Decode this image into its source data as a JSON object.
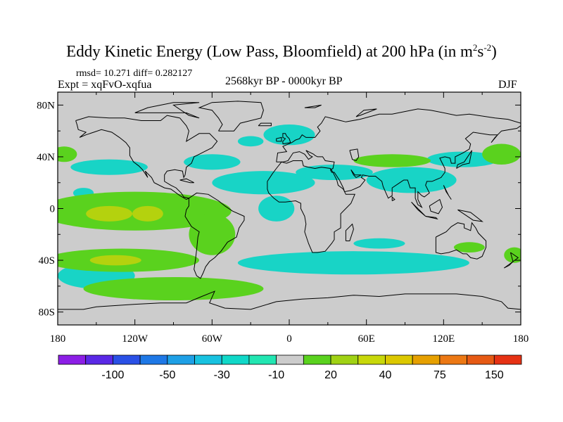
{
  "title_main": "Eddy Kinetic Energy (Low Pass, Bloomfield) at 200 hPa (in m",
  "title_sup1": "2",
  "title_mid": "s",
  "title_sup2": "-2",
  "title_end": ")",
  "stats": "rmsd= 10.271 diff= 0.282127",
  "expt": "Expt = xqFvO-xqfua",
  "period": "2568kyr BP - 0000kyr BP",
  "season": "DJF",
  "lat_ticks": [
    {
      "value": 80,
      "label": "80N"
    },
    {
      "value": 40,
      "label": "40N"
    },
    {
      "value": 0,
      "label": "0"
    },
    {
      "value": -40,
      "label": "40S"
    },
    {
      "value": -80,
      "label": "80S"
    }
  ],
  "lon_ticks": [
    {
      "value": -180,
      "label": "180"
    },
    {
      "value": -120,
      "label": "120W"
    },
    {
      "value": -60,
      "label": "60W"
    },
    {
      "value": 0,
      "label": "0"
    },
    {
      "value": 60,
      "label": "60E"
    },
    {
      "value": 120,
      "label": "120E"
    },
    {
      "value": 180,
      "label": "180"
    }
  ],
  "colorbar": {
    "colors": [
      "#8c1ee6",
      "#5a28e6",
      "#2a50e6",
      "#1e78e6",
      "#1ea0e6",
      "#18c2e0",
      "#10d8c8",
      "#22e6b2",
      "#cccccc",
      "#5ad21e",
      "#a0d214",
      "#c8d80a",
      "#dcc800",
      "#e6a000",
      "#ec7814",
      "#e65a14",
      "#e63214"
    ],
    "labels": [
      {
        "boundary": 2,
        "text": "-100"
      },
      {
        "boundary": 4,
        "text": "-50"
      },
      {
        "boundary": 6,
        "text": "-30"
      },
      {
        "boundary": 8,
        "text": "-10"
      },
      {
        "boundary": 10,
        "text": "20"
      },
      {
        "boundary": 12,
        "text": "40"
      },
      {
        "boundary": 14,
        "text": "75"
      },
      {
        "boundary": 16,
        "text": "150"
      }
    ]
  },
  "map": {
    "background": "#cccccc",
    "anomaly_regions": [
      {
        "color": "#18d4c6",
        "lon": -140,
        "lat": 32,
        "rlon": 30,
        "rlat": 6
      },
      {
        "color": "#18d4c6",
        "lon": -60,
        "lat": 36,
        "rlon": 22,
        "rlat": 6
      },
      {
        "color": "#18d4c6",
        "lon": -20,
        "lat": 20,
        "rlon": 40,
        "rlat": 9
      },
      {
        "color": "#18d4c6",
        "lon": -10,
        "lat": 0,
        "rlon": 14,
        "rlat": 10
      },
      {
        "color": "#18d4c6",
        "lon": 0,
        "lat": 57,
        "rlon": 20,
        "rlat": 8
      },
      {
        "color": "#18d4c6",
        "lon": 35,
        "lat": 28,
        "rlon": 30,
        "rlat": 6
      },
      {
        "color": "#18d4c6",
        "lon": 95,
        "lat": 22,
        "rlon": 35,
        "rlat": 10
      },
      {
        "color": "#18d4c6",
        "lon": 135,
        "lat": 38,
        "rlon": 28,
        "rlat": 6
      },
      {
        "color": "#18d4c6",
        "lon": 50,
        "lat": -42,
        "rlon": 90,
        "rlat": 9
      },
      {
        "color": "#18d4c6",
        "lon": -150,
        "lat": -52,
        "rlon": 30,
        "rlat": 10
      },
      {
        "color": "#18d4c6",
        "lon": 70,
        "lat": -27,
        "rlon": 20,
        "rlat": 4
      },
      {
        "color": "#18d4c6",
        "lon": -160,
        "lat": 12,
        "rlon": 8,
        "rlat": 4
      },
      {
        "color": "#18d4c6",
        "lon": -30,
        "lat": 52,
        "rlon": 10,
        "rlat": 4
      },
      {
        "color": "#5ad21e",
        "lon": -120,
        "lat": -2,
        "rlon": 75,
        "rlat": 15
      },
      {
        "color": "#5ad21e",
        "lon": -130,
        "lat": -40,
        "rlon": 60,
        "rlat": 9
      },
      {
        "color": "#5ad21e",
        "lon": -90,
        "lat": -62,
        "rlon": 70,
        "rlat": 9
      },
      {
        "color": "#5ad21e",
        "lon": -60,
        "lat": -20,
        "rlon": 18,
        "rlat": 16
      },
      {
        "color": "#5ad21e",
        "lon": 80,
        "lat": 37,
        "rlon": 30,
        "rlat": 5
      },
      {
        "color": "#5ad21e",
        "lon": 165,
        "lat": 42,
        "rlon": 15,
        "rlat": 8
      },
      {
        "color": "#5ad21e",
        "lon": -175,
        "lat": 42,
        "rlon": 10,
        "rlat": 6
      },
      {
        "color": "#5ad21e",
        "lon": 140,
        "lat": -30,
        "rlon": 12,
        "rlat": 4
      },
      {
        "color": "#5ad21e",
        "lon": 175,
        "lat": -36,
        "rlon": 8,
        "rlat": 6
      },
      {
        "color": "#b4d20e",
        "lon": -140,
        "lat": -4,
        "rlon": 18,
        "rlat": 6
      },
      {
        "color": "#b4d20e",
        "lon": -110,
        "lat": -4,
        "rlon": 12,
        "rlat": 6
      },
      {
        "color": "#b4d20e",
        "lon": -135,
        "lat": -40,
        "rlon": 20,
        "rlat": 4
      }
    ],
    "coastline_color": "#000000"
  }
}
